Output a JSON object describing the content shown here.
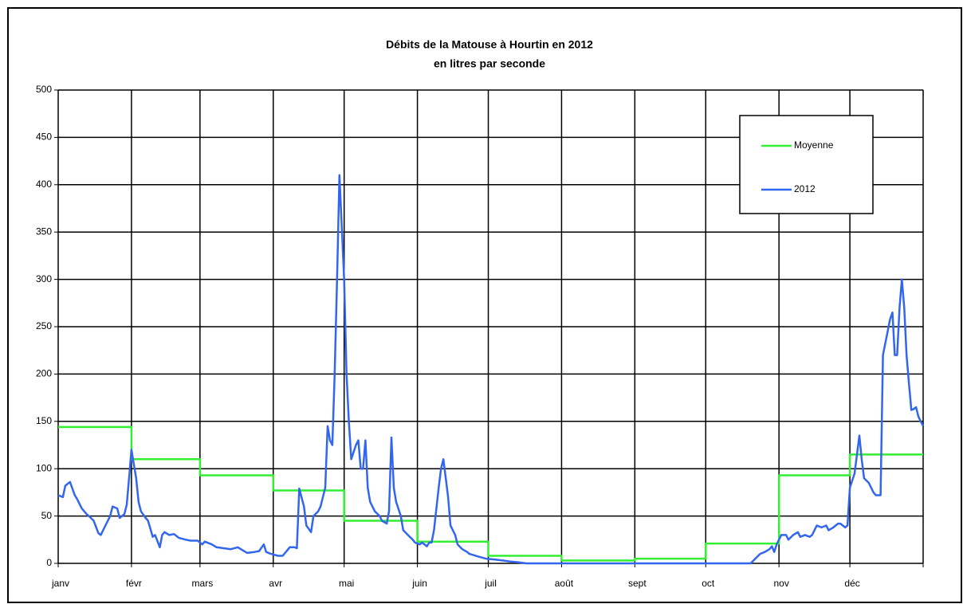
{
  "chart_data": {
    "type": "line",
    "title": "Débits de la Matouse à Hourtin en 2012",
    "subtitle": "en litres par seconde",
    "xlim": [
      0,
      366
    ],
    "xticks": [
      {
        "value": 0,
        "label": "janv"
      },
      {
        "value": 31,
        "label": "févr"
      },
      {
        "value": 60,
        "label": "mars"
      },
      {
        "value": 91,
        "label": "avr"
      },
      {
        "value": 121,
        "label": "mai"
      },
      {
        "value": 152,
        "label": "juin"
      },
      {
        "value": 182,
        "label": "juil"
      },
      {
        "value": 213,
        "label": "août"
      },
      {
        "value": 244,
        "label": "sept"
      },
      {
        "value": 274,
        "label": "oct"
      },
      {
        "value": 305,
        "label": "nov"
      },
      {
        "value": 335,
        "label": "déc"
      },
      {
        "value": 366,
        "label": ""
      }
    ],
    "ylim": [
      0,
      500
    ],
    "yticks": [
      0,
      50,
      100,
      150,
      200,
      250,
      300,
      350,
      400,
      450,
      500
    ],
    "grid": true,
    "legend": "upper right",
    "series": [
      {
        "name": "Moyenne",
        "color": "#33ee33",
        "x": [
          0,
          31,
          31,
          60,
          60,
          91,
          91,
          121,
          121,
          152,
          152,
          182,
          182,
          213,
          213,
          244,
          244,
          274,
          274,
          305,
          305,
          335,
          335,
          366
        ],
        "values": [
          144,
          144,
          110,
          110,
          93,
          93,
          77,
          77,
          45,
          45,
          23,
          23,
          8,
          8,
          3,
          3,
          5,
          5,
          21,
          21,
          93,
          93,
          115,
          115
        ]
      },
      {
        "name": "2012",
        "color": "#3366ee",
        "x": [
          0,
          2,
          3,
          5,
          7,
          8,
          10,
          12,
          13,
          15,
          17,
          18,
          20,
          22,
          23,
          25,
          26,
          28,
          29,
          30,
          31,
          33,
          34,
          35,
          37,
          38,
          40,
          41,
          43,
          44,
          45,
          47,
          49,
          51,
          54,
          56,
          59,
          61,
          62,
          65,
          67,
          70,
          73,
          76,
          78,
          80,
          83,
          85,
          87,
          88,
          90,
          93,
          95,
          98,
          100,
          101,
          102,
          104,
          105,
          107,
          108,
          110,
          111,
          113,
          114,
          115,
          116,
          117,
          118,
          119,
          121,
          122,
          123,
          124,
          126,
          127,
          128,
          129,
          130,
          131,
          132,
          134,
          136,
          137,
          139,
          140,
          141,
          142,
          143,
          145,
          146,
          148,
          150,
          151,
          153,
          154,
          156,
          157,
          158,
          159,
          161,
          162,
          163,
          165,
          166,
          168,
          169,
          171,
          173,
          174,
          178,
          181,
          185,
          188,
          191,
          195,
          198,
          212,
          245,
          279,
          293,
          295,
          297,
          299,
          301,
          302,
          303,
          304,
          306,
          308,
          309,
          311,
          313,
          314,
          316,
          318,
          319,
          321,
          323,
          325,
          326,
          328,
          330,
          331,
          333,
          334,
          335,
          337,
          339,
          340,
          341,
          343,
          345,
          346,
          348,
          349,
          351,
          352,
          353,
          354,
          355,
          356,
          357,
          358,
          359,
          360,
          361,
          362,
          363,
          364,
          365,
          366
        ],
        "values": [
          72,
          70,
          82,
          86,
          72,
          68,
          58,
          52,
          50,
          45,
          32,
          30,
          40,
          50,
          60,
          58,
          48,
          52,
          62,
          90,
          120,
          90,
          65,
          55,
          48,
          45,
          28,
          30,
          17,
          30,
          33,
          30,
          31,
          27,
          25,
          24,
          24,
          20,
          23,
          20,
          17,
          16,
          15,
          17,
          14,
          11,
          12,
          13,
          20,
          12,
          10,
          8,
          8,
          17,
          17,
          16,
          79,
          60,
          40,
          33,
          50,
          55,
          60,
          80,
          145,
          130,
          125,
          200,
          300,
          410,
          300,
          200,
          150,
          110,
          125,
          130,
          100,
          100,
          130,
          80,
          65,
          55,
          50,
          45,
          42,
          55,
          133,
          80,
          65,
          50,
          35,
          30,
          25,
          22,
          20,
          22,
          18,
          22,
          22,
          35,
          80,
          100,
          110,
          70,
          40,
          30,
          20,
          15,
          12,
          10,
          7,
          5,
          4,
          3,
          2,
          1,
          0,
          0,
          0,
          0,
          0,
          5,
          10,
          12,
          15,
          18,
          12,
          20,
          30,
          30,
          25,
          30,
          33,
          28,
          30,
          28,
          30,
          40,
          38,
          40,
          35,
          38,
          42,
          42,
          38,
          40,
          80,
          95,
          135,
          110,
          90,
          85,
          75,
          72,
          72,
          220,
          245,
          258,
          265,
          220,
          220,
          270,
          300,
          270,
          220,
          190,
          162,
          163,
          165,
          155,
          150,
          145
        ]
      }
    ]
  }
}
